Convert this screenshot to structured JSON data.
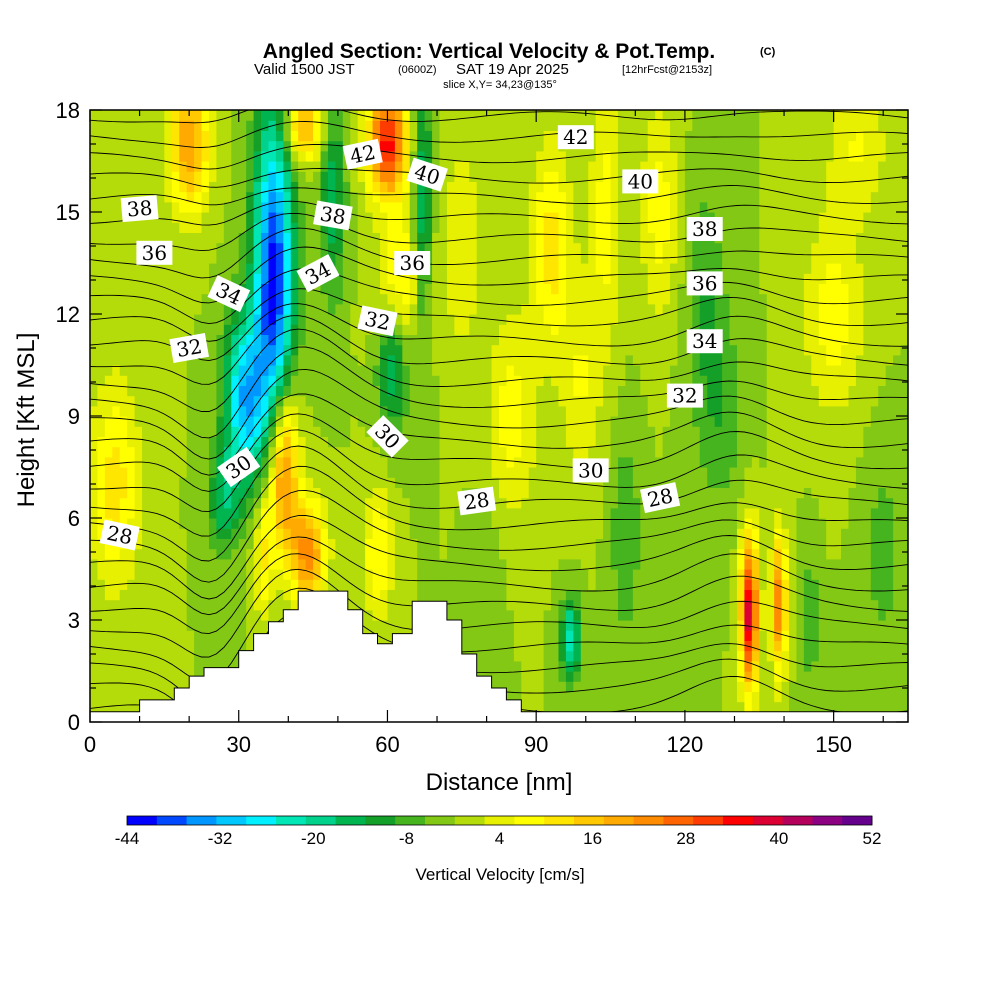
{
  "header": {
    "title": "Angled Section: Vertical Velocity & Pot.Temp.",
    "title_mark": "(C)",
    "valid_prefix": "Valid 1500 JST",
    "valid_zulu": "(0600Z)",
    "valid_date": "SAT 19 Apr 2025",
    "forecast_tag": "[12hrFcst@2153z]",
    "slice": "slice X,Y= 34,23@135°"
  },
  "chart_data": {
    "type": "heatmap",
    "xlabel": "Distance [nm]",
    "ylabel": "Height [Kft MSL]",
    "xlim": [
      0,
      165
    ],
    "ylim": [
      0,
      18
    ],
    "xticks": [
      0,
      30,
      60,
      90,
      120,
      150
    ],
    "yticks": [
      0,
      3,
      6,
      9,
      12,
      15,
      18
    ],
    "colorbar": {
      "label": "Vertical Velocity [cm/s]",
      "ticks": [
        "-44",
        "-32",
        "-20",
        "-8",
        "4",
        "16",
        "28",
        "40",
        "52"
      ],
      "colors": [
        "#0000ff",
        "#0048ff",
        "#0096ff",
        "#00c8ff",
        "#00f0ff",
        "#00e6b4",
        "#00d28c",
        "#00b450",
        "#14a028",
        "#46b41e",
        "#82c814",
        "#b4dc0a",
        "#e6f000",
        "#ffff00",
        "#ffe600",
        "#ffc800",
        "#ffaa00",
        "#ff8c00",
        "#ff6400",
        "#ff3c00",
        "#ff0000",
        "#dc0032",
        "#b4005a",
        "#8c0082",
        "#64008c"
      ]
    },
    "terrain_top_kft": [
      [
        0,
        0.3
      ],
      [
        10,
        0.3
      ],
      [
        10,
        0.65
      ],
      [
        14,
        0.65
      ],
      [
        17,
        0.65
      ],
      [
        17,
        1.0
      ],
      [
        20,
        1.0
      ],
      [
        20,
        1.35
      ],
      [
        23,
        1.35
      ],
      [
        23,
        1.6
      ],
      [
        26,
        1.6
      ],
      [
        26,
        1.6
      ],
      [
        30,
        1.6
      ],
      [
        30,
        2.1
      ],
      [
        33,
        2.1
      ],
      [
        33,
        2.6
      ],
      [
        36,
        2.6
      ],
      [
        36,
        2.95
      ],
      [
        39,
        2.95
      ],
      [
        39,
        3.3
      ],
      [
        42,
        3.3
      ],
      [
        42,
        3.85
      ],
      [
        47,
        3.85
      ],
      [
        52,
        3.85
      ],
      [
        52,
        3.3
      ],
      [
        55,
        3.3
      ],
      [
        55,
        2.6
      ],
      [
        58,
        2.6
      ],
      [
        58,
        2.3
      ],
      [
        61,
        2.3
      ],
      [
        61,
        2.6
      ],
      [
        65,
        2.6
      ],
      [
        65,
        3.55
      ],
      [
        69,
        3.55
      ],
      [
        72,
        3.55
      ],
      [
        72,
        3.0
      ],
      [
        75,
        3.0
      ],
      [
        75,
        2.0
      ],
      [
        78,
        2.0
      ],
      [
        78,
        1.35
      ],
      [
        81,
        1.35
      ],
      [
        81,
        1.0
      ],
      [
        84,
        1.0
      ],
      [
        84,
        0.65
      ],
      [
        87,
        0.65
      ],
      [
        87,
        0.3
      ],
      [
        90,
        0.3
      ],
      [
        165,
        0.3
      ]
    ],
    "theta_contour_labels": [
      {
        "value": "28",
        "x": 6,
        "y": 5.5,
        "angle": 12
      },
      {
        "value": "28",
        "x": 78,
        "y": 6.5,
        "angle": -8
      },
      {
        "value": "28",
        "x": 115,
        "y": 6.6,
        "angle": -12
      },
      {
        "value": "30",
        "x": 30,
        "y": 7.5,
        "angle": -35
      },
      {
        "value": "30",
        "x": 60,
        "y": 8.4,
        "angle": 45
      },
      {
        "value": "30",
        "x": 101,
        "y": 7.4,
        "angle": 0
      },
      {
        "value": "32",
        "x": 20,
        "y": 11.0,
        "angle": -10
      },
      {
        "value": "32",
        "x": 58,
        "y": 11.8,
        "angle": 12
      },
      {
        "value": "32",
        "x": 120,
        "y": 9.6,
        "angle": 0
      },
      {
        "value": "34",
        "x": 28,
        "y": 12.6,
        "angle": 25
      },
      {
        "value": "34",
        "x": 46,
        "y": 13.2,
        "angle": -28
      },
      {
        "value": "34",
        "x": 124,
        "y": 11.2,
        "angle": 0
      },
      {
        "value": "36",
        "x": 13,
        "y": 13.8,
        "angle": 0
      },
      {
        "value": "36",
        "x": 65,
        "y": 13.5,
        "angle": 0
      },
      {
        "value": "36",
        "x": 124,
        "y": 12.9,
        "angle": 0
      },
      {
        "value": "38",
        "x": 10,
        "y": 15.1,
        "angle": -5
      },
      {
        "value": "38",
        "x": 49,
        "y": 14.9,
        "angle": 10
      },
      {
        "value": "38",
        "x": 124,
        "y": 14.5,
        "angle": 0
      },
      {
        "value": "40",
        "x": 68,
        "y": 16.1,
        "angle": 18
      },
      {
        "value": "40",
        "x": 111,
        "y": 15.9,
        "angle": 0
      },
      {
        "value": "42",
        "x": 55,
        "y": 16.7,
        "angle": -12
      },
      {
        "value": "42",
        "x": 98,
        "y": 17.2,
        "angle": 0
      }
    ]
  }
}
